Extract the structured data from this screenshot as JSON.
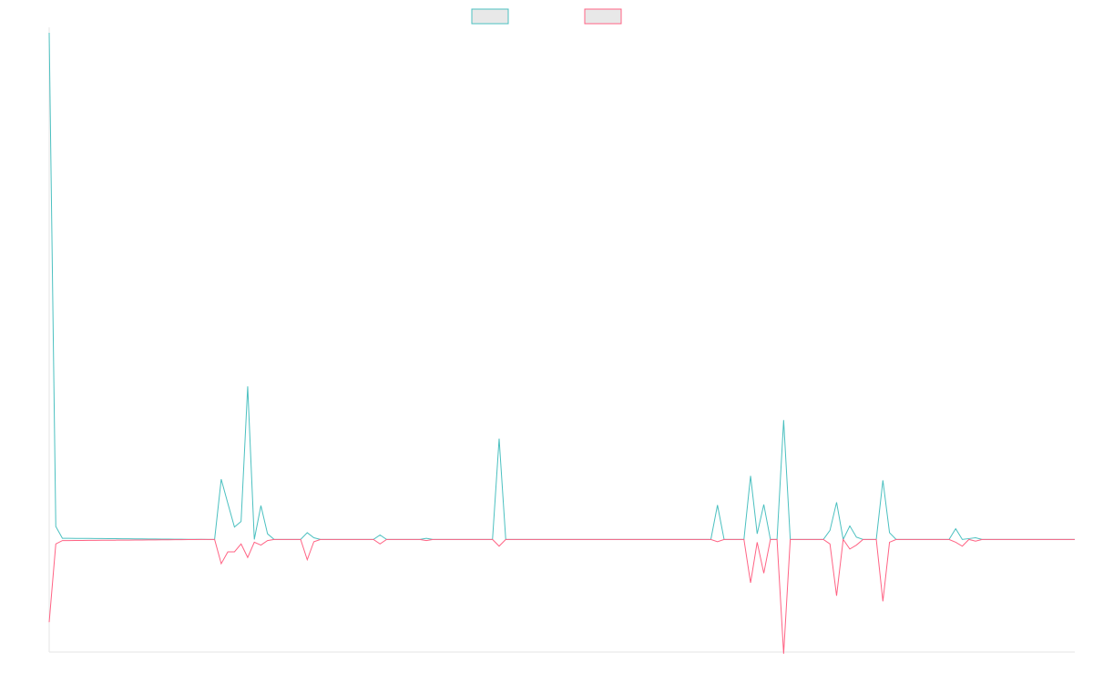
{
  "chart_data": {
    "type": "line",
    "x_count": 156,
    "ylim": [
      -0.2,
      0.9
    ],
    "grid": false,
    "legend_position": "top-center",
    "series": [
      {
        "name": "",
        "color": "#4bc0c0",
        "fill": "#e8e8e8",
        "points": [
          [
            0,
            0.9
          ],
          [
            1,
            0.023
          ],
          [
            2,
            0.002
          ],
          [
            3,
            0.002
          ],
          [
            24,
            0
          ],
          [
            25,
            0
          ],
          [
            26,
            0.107
          ],
          [
            27,
            0.064
          ],
          [
            28,
            0.022
          ],
          [
            29,
            0.032
          ],
          [
            30,
            0.272
          ],
          [
            31,
            0
          ],
          [
            32,
            0.06
          ],
          [
            33,
            0.01
          ],
          [
            34,
            0
          ],
          [
            38,
            0
          ],
          [
            39,
            0.012
          ],
          [
            40,
            0.003
          ],
          [
            41,
            0
          ],
          [
            49,
            0
          ],
          [
            50,
            0.008
          ],
          [
            51,
            0
          ],
          [
            56,
            0
          ],
          [
            57,
            0.002
          ],
          [
            58,
            0
          ],
          [
            67,
            0
          ],
          [
            68,
            0.179
          ],
          [
            69,
            0
          ],
          [
            100,
            0
          ],
          [
            101,
            0.061
          ],
          [
            102,
            0
          ],
          [
            105,
            0
          ],
          [
            106,
            0.113
          ],
          [
            107,
            0.01
          ],
          [
            108,
            0.062
          ],
          [
            109,
            0
          ],
          [
            110,
            0
          ],
          [
            111,
            0.212
          ],
          [
            112,
            0
          ],
          [
            117,
            0
          ],
          [
            118,
            0.016
          ],
          [
            119,
            0.066
          ],
          [
            120,
            0
          ],
          [
            121,
            0.024
          ],
          [
            122,
            0.004
          ],
          [
            123,
            0
          ],
          [
            125,
            0
          ],
          [
            126,
            0.105
          ],
          [
            127,
            0.012
          ],
          [
            128,
            0
          ],
          [
            136,
            0
          ],
          [
            137,
            0.019
          ],
          [
            138,
            0
          ],
          [
            140,
            0.003
          ],
          [
            141,
            0
          ],
          [
            155,
            0
          ]
        ]
      },
      {
        "name": "",
        "color": "#ff6384",
        "fill": "#e8e8e8",
        "points": [
          [
            0,
            -0.147
          ],
          [
            1,
            -0.008
          ],
          [
            2,
            -0.002
          ],
          [
            3,
            -0.002
          ],
          [
            24,
            0
          ],
          [
            25,
            0
          ],
          [
            26,
            -0.043
          ],
          [
            27,
            -0.022
          ],
          [
            28,
            -0.022
          ],
          [
            29,
            -0.008
          ],
          [
            30,
            -0.032
          ],
          [
            31,
            -0.005
          ],
          [
            32,
            -0.01
          ],
          [
            33,
            -0.002
          ],
          [
            34,
            0
          ],
          [
            38,
            0
          ],
          [
            39,
            -0.036
          ],
          [
            40,
            -0.004
          ],
          [
            41,
            0
          ],
          [
            49,
            0
          ],
          [
            50,
            -0.008
          ],
          [
            51,
            0
          ],
          [
            56,
            0
          ],
          [
            57,
            -0.002
          ],
          [
            58,
            0
          ],
          [
            67,
            0
          ],
          [
            68,
            -0.012
          ],
          [
            69,
            0
          ],
          [
            100,
            0
          ],
          [
            101,
            -0.004
          ],
          [
            102,
            0
          ],
          [
            105,
            0
          ],
          [
            106,
            -0.077
          ],
          [
            107,
            -0.005
          ],
          [
            108,
            -0.06
          ],
          [
            109,
            0
          ],
          [
            110,
            0
          ],
          [
            111,
            -0.203
          ],
          [
            112,
            0
          ],
          [
            117,
            0
          ],
          [
            118,
            -0.008
          ],
          [
            119,
            -0.1
          ],
          [
            120,
            0
          ],
          [
            121,
            -0.017
          ],
          [
            122,
            -0.01
          ],
          [
            123,
            0
          ],
          [
            125,
            0
          ],
          [
            126,
            -0.11
          ],
          [
            127,
            -0.005
          ],
          [
            128,
            0
          ],
          [
            136,
            0
          ],
          [
            137,
            -0.005
          ],
          [
            138,
            -0.012
          ],
          [
            139,
            0
          ],
          [
            140,
            -0.003
          ],
          [
            141,
            0
          ],
          [
            155,
            0
          ]
        ]
      }
    ]
  }
}
